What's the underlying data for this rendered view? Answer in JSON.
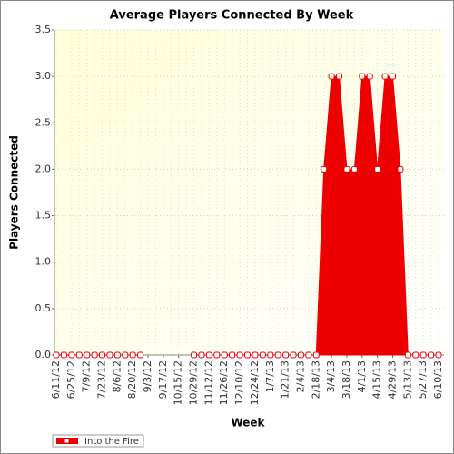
{
  "chart_data": {
    "type": "area",
    "title": "Average Players Connected By Week",
    "x_label": "Week",
    "y_label": "Players Connected",
    "categories": [
      "6/11/12",
      null,
      "6/25/12",
      null,
      "7/9/12",
      null,
      "7/23/12",
      null,
      "8/6/12",
      null,
      "8/20/12",
      null,
      "9/3/12",
      null,
      "9/17/12",
      null,
      "10/15/12",
      null,
      "10/29/12",
      null,
      "11/12/12",
      null,
      "11/26/12",
      null,
      "12/10/12",
      null,
      "12/24/12",
      null,
      "1/7/13",
      null,
      "1/21/13",
      null,
      "2/4/13",
      null,
      "2/18/13",
      null,
      "3/4/13",
      null,
      "3/18/13",
      null,
      "4/1/13",
      null,
      "4/15/13",
      null,
      "4/29/13",
      null,
      "5/13/13",
      null,
      "5/27/13",
      null,
      "6/10/13"
    ],
    "series": [
      {
        "name": "Into the Fire",
        "color": "#ee0000",
        "values": [
          0,
          0,
          0,
          0,
          0,
          0,
          0,
          0,
          0,
          0,
          0,
          0,
          null,
          null,
          null,
          null,
          null,
          null,
          0,
          0,
          0,
          0,
          0,
          0,
          0,
          0,
          0,
          0,
          0,
          0,
          0,
          0,
          0,
          0,
          0,
          2,
          3,
          3,
          2,
          2,
          3,
          3,
          2,
          3,
          3,
          2,
          0,
          0,
          0,
          0,
          0
        ]
      }
    ],
    "ylim": [
      0,
      3.5
    ],
    "yticks": [
      {
        "value": 0,
        "label": "0.0"
      },
      {
        "value": 0.5,
        "label": "0.5"
      },
      {
        "value": 1,
        "label": "1.0"
      },
      {
        "value": 1.5,
        "label": "1.5"
      },
      {
        "value": 2,
        "label": "2.0"
      },
      {
        "value": 2.5,
        "label": "2.5"
      },
      {
        "value": 3,
        "label": "3.0"
      },
      {
        "value": 3.5,
        "label": "3.5"
      }
    ],
    "grid": true,
    "legend": "bottom-left"
  }
}
